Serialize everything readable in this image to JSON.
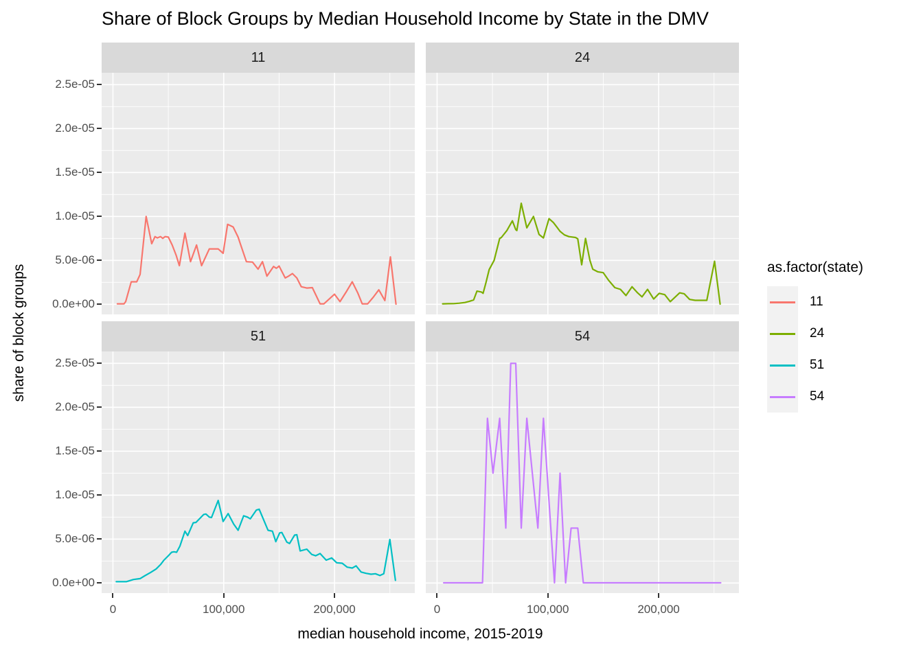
{
  "title": "Share of Block Groups by Median Household Income by State in the DMV",
  "axes": {
    "x_title": "median household income, 2015-2019",
    "y_title": "share of block groups",
    "x_ticks": [
      {
        "value": 0,
        "label": "0"
      },
      {
        "value": 100000,
        "label": "100,000"
      },
      {
        "value": 200000,
        "label": "200,000"
      }
    ],
    "y_ticks": [
      {
        "value": 0,
        "label": "0.0e+00"
      },
      {
        "value": 5e-06,
        "label": "5.0e-06"
      },
      {
        "value": 1e-05,
        "label": "1.0e-05"
      },
      {
        "value": 1.5e-05,
        "label": "1.5e-05"
      },
      {
        "value": 2e-05,
        "label": "2.0e-05"
      },
      {
        "value": 2.5e-05,
        "label": "2.5e-05"
      }
    ]
  },
  "legend": {
    "title": "as.factor(state)",
    "entries": [
      {
        "label": "11",
        "color": "#F8766D"
      },
      {
        "label": "24",
        "color": "#7CAE00"
      },
      {
        "label": "51",
        "color": "#00BFC4"
      },
      {
        "label": "54",
        "color": "#C77CFF"
      }
    ]
  },
  "colors": {
    "panel_background": "#EBEBEB",
    "strip_background": "#D9D9D9",
    "gridline": "#FFFFFF",
    "axis_text": "#4D4D4D",
    "tick_mark": "#333333",
    "legend_key_background": "#F2F2F2"
  },
  "chart_data": {
    "type": "line",
    "title": "Share of Block Groups by Median Household Income by State in the DMV",
    "xlabel": "median household income, 2015-2019",
    "ylabel": "share of block groups",
    "x_domain": [
      -10200,
      272500
    ],
    "y_domain": [
      -1.15e-06,
      2.635e-05
    ],
    "x_major_gridlines": [
      0,
      100000,
      200000
    ],
    "x_minor_gridlines": [
      50000,
      150000,
      250000
    ],
    "y_major_gridlines": [
      0,
      5e-06,
      1e-05,
      1.5e-05,
      2e-05,
      2.5e-05
    ],
    "y_minor_gridlines": [
      2.5e-06,
      7.5e-06,
      1.25e-05,
      1.75e-05,
      2.25e-05
    ],
    "facets": [
      {
        "label": "11",
        "color": "#F8766D",
        "points": [
          [
            4000,
            5e-08
          ],
          [
            10000,
            5e-08
          ],
          [
            11500,
            3e-07
          ],
          [
            16500,
            2.56e-06
          ],
          [
            21500,
            2.56e-06
          ],
          [
            24500,
            3.4e-06
          ],
          [
            30000,
            1e-05
          ],
          [
            35000,
            6.9e-06
          ],
          [
            38000,
            7.7e-06
          ],
          [
            40000,
            7.55e-06
          ],
          [
            43000,
            7.7e-06
          ],
          [
            45000,
            7.5e-06
          ],
          [
            47000,
            7.7e-06
          ],
          [
            50000,
            7.65e-06
          ],
          [
            53500,
            6.75e-06
          ],
          [
            57000,
            5.6e-06
          ],
          [
            60000,
            4.4e-06
          ],
          [
            65000,
            8.1e-06
          ],
          [
            70000,
            4.85e-06
          ],
          [
            75500,
            6.75e-06
          ],
          [
            80000,
            4.4e-06
          ],
          [
            87000,
            6.3e-06
          ],
          [
            95000,
            6.3e-06
          ],
          [
            99500,
            5.8e-06
          ],
          [
            103500,
            9.1e-06
          ],
          [
            108500,
            8.8e-06
          ],
          [
            113000,
            7.65e-06
          ],
          [
            115000,
            6.9e-06
          ],
          [
            120500,
            4.85e-06
          ],
          [
            126000,
            4.8e-06
          ],
          [
            131000,
            4e-06
          ],
          [
            135000,
            4.85e-06
          ],
          [
            139000,
            3.2e-06
          ],
          [
            145000,
            4.3e-06
          ],
          [
            147500,
            4.1e-06
          ],
          [
            150000,
            4.35e-06
          ],
          [
            155500,
            3e-06
          ],
          [
            158500,
            3.2e-06
          ],
          [
            162000,
            3.5e-06
          ],
          [
            166000,
            3e-06
          ],
          [
            170000,
            2e-06
          ],
          [
            175000,
            1.85e-06
          ],
          [
            180000,
            1.9e-06
          ],
          [
            187000,
            5e-08
          ],
          [
            190500,
            5e-08
          ],
          [
            200000,
            1.15e-06
          ],
          [
            205000,
            3e-07
          ],
          [
            211000,
            1.5e-06
          ],
          [
            216000,
            2.56e-06
          ],
          [
            221000,
            1.3e-06
          ],
          [
            225000,
            5e-08
          ],
          [
            230000,
            5e-08
          ],
          [
            235000,
            8e-07
          ],
          [
            240000,
            1.65e-06
          ],
          [
            245500,
            4.3e-07
          ],
          [
            250500,
            5.4e-06
          ],
          [
            255500,
            2e-08
          ]
        ]
      },
      {
        "label": "24",
        "color": "#7CAE00",
        "points": [
          [
            5000,
            5e-08
          ],
          [
            10000,
            7e-08
          ],
          [
            15000,
            8e-08
          ],
          [
            20000,
            1.2e-07
          ],
          [
            25000,
            2e-07
          ],
          [
            29000,
            3.3e-07
          ],
          [
            33000,
            5e-07
          ],
          [
            36000,
            1.5e-06
          ],
          [
            40000,
            1.4e-06
          ],
          [
            41500,
            1.25e-06
          ],
          [
            44000,
            2.4e-06
          ],
          [
            47000,
            3.95e-06
          ],
          [
            51500,
            5e-06
          ],
          [
            56500,
            7.5e-06
          ],
          [
            58000,
            7.6e-06
          ],
          [
            63000,
            8.4e-06
          ],
          [
            68000,
            9.5e-06
          ],
          [
            71000,
            8.5e-06
          ],
          [
            72000,
            8.4e-06
          ],
          [
            76000,
            1.15e-05
          ],
          [
            81000,
            8.7e-06
          ],
          [
            87000,
            1e-05
          ],
          [
            92000,
            7.95e-06
          ],
          [
            96000,
            7.55e-06
          ],
          [
            101000,
            9.75e-06
          ],
          [
            105000,
            9.3e-06
          ],
          [
            108000,
            8.8e-06
          ],
          [
            111000,
            8.3e-06
          ],
          [
            115000,
            7.9e-06
          ],
          [
            119000,
            7.7e-06
          ],
          [
            125000,
            7.6e-06
          ],
          [
            127000,
            7.45e-06
          ],
          [
            130500,
            4.5e-06
          ],
          [
            134000,
            7.5e-06
          ],
          [
            138000,
            5e-06
          ],
          [
            140500,
            4e-06
          ],
          [
            145000,
            3.7e-06
          ],
          [
            150000,
            3.6e-06
          ],
          [
            155000,
            2.7e-06
          ],
          [
            160500,
            1.9e-06
          ],
          [
            165500,
            1.7e-06
          ],
          [
            170500,
            1e-06
          ],
          [
            176000,
            2e-06
          ],
          [
            181000,
            1.3e-06
          ],
          [
            185000,
            8.5e-07
          ],
          [
            190000,
            1.7e-06
          ],
          [
            195500,
            6e-07
          ],
          [
            200500,
            1.25e-06
          ],
          [
            205500,
            1.1e-06
          ],
          [
            210500,
            3e-07
          ],
          [
            219000,
            1.3e-06
          ],
          [
            223000,
            1.2e-06
          ],
          [
            228000,
            5.5e-07
          ],
          [
            233000,
            4.5e-07
          ],
          [
            243500,
            4.5e-07
          ],
          [
            250500,
            4.9e-06
          ],
          [
            255500,
            2e-08
          ]
        ]
      },
      {
        "label": "51",
        "color": "#00BFC4",
        "points": [
          [
            3000,
            1.5e-07
          ],
          [
            12000,
            1.5e-07
          ],
          [
            18500,
            4e-07
          ],
          [
            24500,
            5e-07
          ],
          [
            28500,
            8e-07
          ],
          [
            34000,
            1.2e-06
          ],
          [
            39000,
            1.6e-06
          ],
          [
            43000,
            2.1e-06
          ],
          [
            46000,
            2.6e-06
          ],
          [
            50000,
            3.1e-06
          ],
          [
            53000,
            3.5e-06
          ],
          [
            55000,
            3.55e-06
          ],
          [
            57500,
            3.5e-06
          ],
          [
            60500,
            4.2e-06
          ],
          [
            65000,
            5.9e-06
          ],
          [
            67500,
            5.4e-06
          ],
          [
            72500,
            6.85e-06
          ],
          [
            75000,
            6.9e-06
          ],
          [
            82000,
            7.8e-06
          ],
          [
            84000,
            7.85e-06
          ],
          [
            87000,
            7.5e-06
          ],
          [
            89000,
            7.45e-06
          ],
          [
            95000,
            9.4e-06
          ],
          [
            99500,
            7e-06
          ],
          [
            104000,
            7.9e-06
          ],
          [
            109000,
            6.7e-06
          ],
          [
            113000,
            6e-06
          ],
          [
            118000,
            7.65e-06
          ],
          [
            121500,
            7.5e-06
          ],
          [
            124000,
            7.3e-06
          ],
          [
            129500,
            8.3e-06
          ],
          [
            132000,
            8.4e-06
          ],
          [
            140000,
            6e-06
          ],
          [
            144000,
            5.9e-06
          ],
          [
            147000,
            4.7e-06
          ],
          [
            150500,
            5.7e-06
          ],
          [
            152500,
            5.75e-06
          ],
          [
            157000,
            4.65e-06
          ],
          [
            159500,
            4.5e-06
          ],
          [
            164000,
            5.45e-06
          ],
          [
            166000,
            5.5e-06
          ],
          [
            169000,
            3.65e-06
          ],
          [
            175000,
            3.85e-06
          ],
          [
            179500,
            3.25e-06
          ],
          [
            183000,
            3.1e-06
          ],
          [
            187000,
            3.35e-06
          ],
          [
            192500,
            2.6e-06
          ],
          [
            197500,
            2.85e-06
          ],
          [
            202000,
            2.3e-06
          ],
          [
            207000,
            2.25e-06
          ],
          [
            211500,
            1.8e-06
          ],
          [
            216000,
            1.7e-06
          ],
          [
            219500,
            1.95e-06
          ],
          [
            224000,
            1.25e-06
          ],
          [
            228500,
            1.1e-06
          ],
          [
            233000,
            1e-06
          ],
          [
            237000,
            1.05e-06
          ],
          [
            241000,
            8.5e-07
          ],
          [
            244500,
            1.05e-06
          ],
          [
            250000,
            4.95e-06
          ],
          [
            255000,
            3e-07
          ]
        ]
      },
      {
        "label": "54",
        "color": "#C77CFF",
        "points": [
          [
            6000,
            2e-08
          ],
          [
            41000,
            2e-08
          ],
          [
            45500,
            1.875e-05
          ],
          [
            50500,
            1.25e-05
          ],
          [
            56500,
            1.875e-05
          ],
          [
            62000,
            6.25e-06
          ],
          [
            66500,
            2.5e-05
          ],
          [
            71000,
            2.5e-05
          ],
          [
            76000,
            6.25e-06
          ],
          [
            81000,
            1.875e-05
          ],
          [
            91000,
            6.25e-06
          ],
          [
            96000,
            1.875e-05
          ],
          [
            106000,
            2e-08
          ],
          [
            111000,
            1.25e-05
          ],
          [
            116000,
            2e-08
          ],
          [
            121000,
            6.25e-06
          ],
          [
            127000,
            6.25e-06
          ],
          [
            132000,
            2e-08
          ],
          [
            256000,
            2e-08
          ]
        ]
      }
    ]
  }
}
